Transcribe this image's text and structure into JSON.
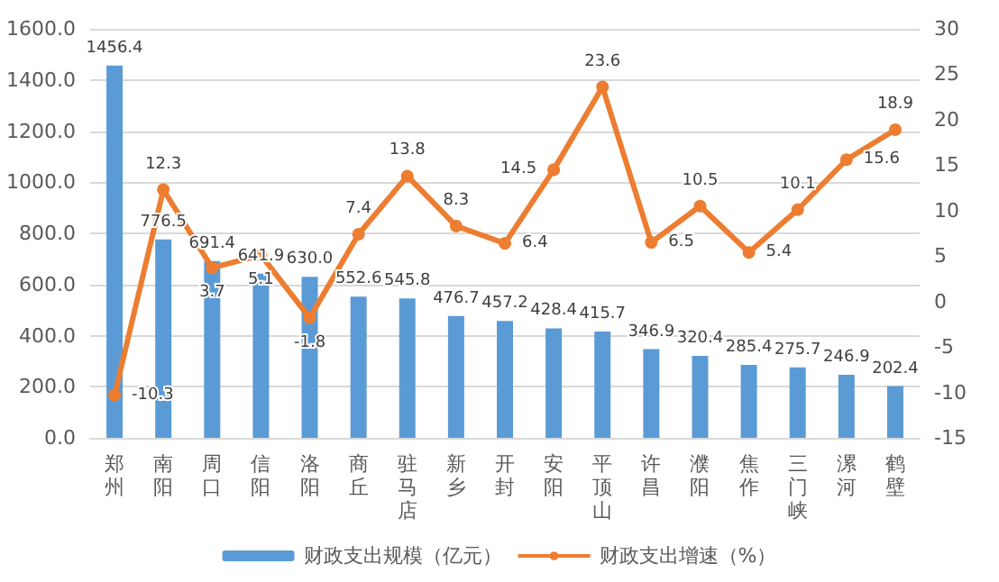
{
  "chart_data": {
    "type": "bar",
    "categories": [
      "郑州",
      "南阳",
      "周口",
      "信阳",
      "洛阳",
      "商丘",
      "驻马店",
      "新乡",
      "开封",
      "安阳",
      "平顶山",
      "许昌",
      "濮阳",
      "焦作",
      "三门峡",
      "漯河",
      "鹤壁"
    ],
    "series": [
      {
        "name": "财政支出规模（亿元）",
        "color": "#5b9bd5",
        "values": [
          1456.4,
          776.5,
          691.4,
          641.9,
          630.0,
          552.6,
          545.8,
          476.7,
          457.2,
          428.4,
          415.7,
          346.9,
          320.4,
          285.4,
          275.7,
          246.9,
          202.4
        ],
        "value_labels": [
          "1456.4",
          "776.5",
          "691.4",
          "641.9",
          "630.0",
          "552.6",
          "545.8",
          "476.7",
          "457.2",
          "428.4",
          "415.7",
          "346.9",
          "320.4",
          "285.4",
          "275.7",
          "246.9",
          "202.4"
        ]
      },
      {
        "name": "财政支出增速（%）",
        "type": "line",
        "axis": "y2",
        "color": "#ed7d31",
        "values": [
          -10.3,
          12.3,
          3.7,
          5.1,
          -1.8,
          7.4,
          13.8,
          8.3,
          6.4,
          14.5,
          23.6,
          6.5,
          10.5,
          5.4,
          10.1,
          15.6,
          18.9
        ],
        "value_labels": [
          "-10.3",
          "12.3",
          "3.7",
          "5.1",
          "-1.8",
          "7.4",
          "13.8",
          "8.3",
          "6.4",
          "14.5",
          "23.6",
          "6.5",
          "10.5",
          "5.4",
          "10.1",
          "15.6",
          "18.9"
        ]
      }
    ],
    "ylim": [
      0,
      1600
    ],
    "yticks": [
      {
        "value": 0,
        "label": "0.0"
      },
      {
        "value": 200,
        "label": "200.0"
      },
      {
        "value": 400,
        "label": "400.0"
      },
      {
        "value": 600,
        "label": "600.0"
      },
      {
        "value": 800,
        "label": "800.0"
      },
      {
        "value": 1000,
        "label": "1000.0"
      },
      {
        "value": 1200,
        "label": "1200.0"
      },
      {
        "value": 1400,
        "label": "1400.0"
      },
      {
        "value": 1600,
        "label": "1600.0"
      }
    ],
    "y2lim": [
      -15,
      30
    ],
    "y2ticks": [
      -15,
      -10,
      -5,
      0,
      5,
      10,
      15,
      20,
      25,
      30
    ],
    "grid": "y",
    "legend": "bottom",
    "marker": "circle",
    "line_style": "solid"
  }
}
